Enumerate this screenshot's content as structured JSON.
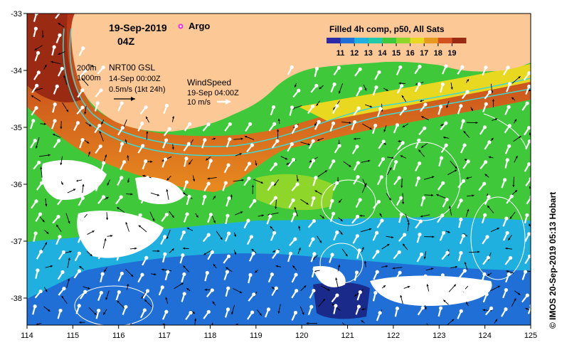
{
  "header": {
    "date": "19-Sep-2019",
    "time": "04Z",
    "argo_label": "Argo"
  },
  "legend": {
    "title": "Filled 4h comp, p50, All Sats",
    "ticks": [
      "11",
      "12",
      "13",
      "14",
      "15",
      "16",
      "17",
      "18",
      "19"
    ],
    "colors": [
      "#2b2ba8",
      "#1f6fd6",
      "#1fb0e0",
      "#22c8a8",
      "#3fc83a",
      "#8fd62a",
      "#e8d81f",
      "#e89a1f",
      "#d2521f",
      "#9b2a12"
    ]
  },
  "contours": {
    "labels": [
      "200m",
      "1000m"
    ]
  },
  "current_key": {
    "title": "NRT00 GSL",
    "date": "14-Sep 00:00Z",
    "scale": "0.5m/s (1kt 24h)"
  },
  "wind_key": {
    "title": "WindSpeed",
    "date": "19-Sep 04:00Z",
    "scale": "10 m/s"
  },
  "axes": {
    "x_ticks": [
      "114",
      "115",
      "116",
      "117",
      "118",
      "119",
      "120",
      "121",
      "122",
      "123",
      "124",
      "125"
    ],
    "y_ticks": [
      "-33",
      "-34",
      "-35",
      "-36",
      "-37",
      "-38"
    ]
  },
  "credit": "© IMOS 20-Sep-2019 05:13 Hobart"
}
